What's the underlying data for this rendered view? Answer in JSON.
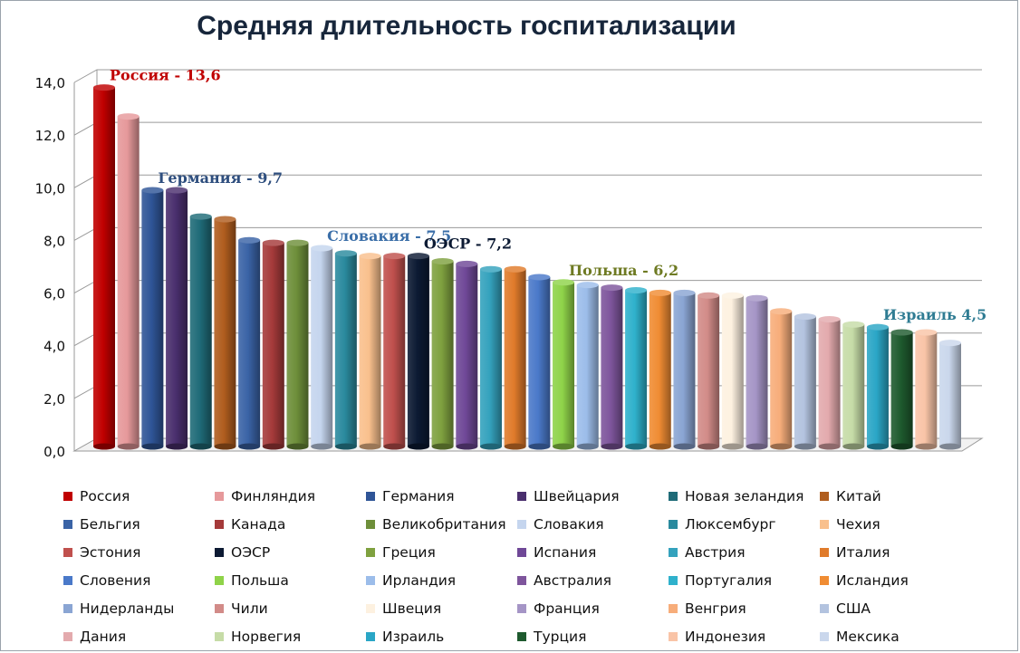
{
  "chart_data": {
    "type": "bar",
    "title": "Средняя длительность госпитализации",
    "xlabel": "",
    "ylabel": "",
    "ylim": [
      0,
      14
    ],
    "yticks": [
      "0,0",
      "2,0",
      "4,0",
      "6,0",
      "8,0",
      "10,0",
      "12,0",
      "14,0"
    ],
    "grid": true,
    "legend_placement": "bottom",
    "categories": [
      "Россия",
      "Финляндия",
      "Германия",
      "Швейцария",
      "Новая зеландия",
      "Китай",
      "Бельгия",
      "Канада",
      "Великобритания",
      "Словакия",
      "Люксембург",
      "Чехия",
      "Эстония",
      "ОЭСР",
      "Греция",
      "Испания",
      "Австрия",
      "Италия",
      "Словения",
      "Польша",
      "Ирландия",
      "Австралия",
      "Португалия",
      "Исландия",
      "Нидерланды",
      "Чили",
      "Швеция",
      "Франция",
      "Венгрия",
      "США",
      "Дания",
      "Норвегия",
      "Израиль",
      "Турция",
      "Индонезия",
      "Мексика"
    ],
    "values": [
      13.6,
      12.5,
      9.7,
      9.7,
      8.7,
      8.6,
      7.8,
      7.7,
      7.7,
      7.5,
      7.3,
      7.2,
      7.2,
      7.2,
      7.0,
      6.9,
      6.7,
      6.7,
      6.4,
      6.2,
      6.1,
      6.0,
      5.9,
      5.8,
      5.8,
      5.7,
      5.7,
      5.6,
      5.1,
      4.9,
      4.8,
      4.6,
      4.5,
      4.3,
      4.3,
      3.9
    ],
    "colors": [
      "#c00000",
      "#e6999b",
      "#2f5597",
      "#4a2f6e",
      "#1f6b78",
      "#b05d1e",
      "#3a63a6",
      "#a53a3a",
      "#6e8f3a",
      "#c5d5ee",
      "#2a8a9e",
      "#f9c08d",
      "#c0504d",
      "#0c1a33",
      "#7fa13f",
      "#6f4897",
      "#34a2bd",
      "#e07b2b",
      "#4a79c9",
      "#8fd349",
      "#9cbdea",
      "#7e559c",
      "#2fb1cc",
      "#f08c33",
      "#8aa5d3",
      "#d28b88",
      "#fdf1e0",
      "#a595c6",
      "#f7ad7a",
      "#b3c3df",
      "#e3aaad",
      "#c6dca7",
      "#2aa6c6",
      "#1e5a2e",
      "#f9c4a7",
      "#cad7ec"
    ],
    "annotations": [
      {
        "text": "Россия  - 13,6",
        "bar": 0,
        "color": "#c00000"
      },
      {
        "text": "Германия - 9,7",
        "bar": 2,
        "color": "#2e4e7e"
      },
      {
        "text": "Словакия - 7,5",
        "bar": 9,
        "color": "#3a6ea8"
      },
      {
        "text": "ОЭСР - 7,2",
        "bar": 13,
        "color": "#0c1a33"
      },
      {
        "text": "Польша - 6,2",
        "bar": 19,
        "color": "#6e7a22"
      },
      {
        "text": "Израиль 4,5",
        "bar": 32,
        "color": "#2f7c93"
      }
    ]
  }
}
